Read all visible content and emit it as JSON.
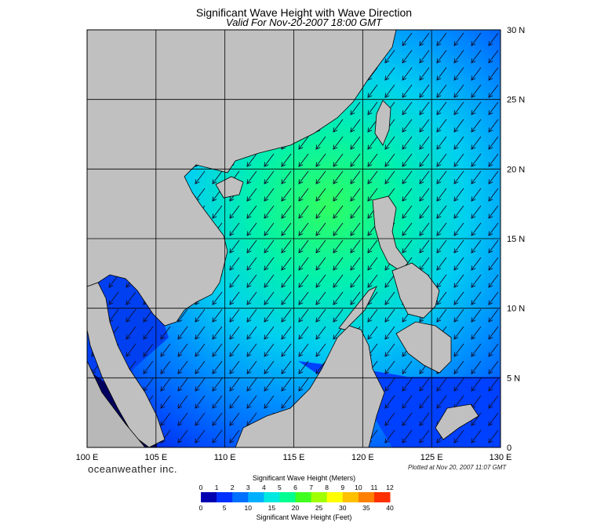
{
  "title": "Significant Wave Height with Wave Direction",
  "subtitle": "Valid For Nov-20-2007 18:00 GMT",
  "brand": "oceanweather inc.",
  "plotted": "Plotted at Nov 20, 2007 11:07 GMT",
  "map": {
    "lon_labels": [
      "100 E",
      "105 E",
      "110 E",
      "115 E",
      "120 E",
      "125 E",
      "130 E"
    ],
    "lat_labels": [
      "30 N",
      "25 N",
      "20 N",
      "15 N",
      "10 N",
      "5 N",
      "0"
    ],
    "lon_range": [
      100,
      130
    ],
    "lat_range": [
      0,
      30
    ],
    "land_color": "#c0c0c0",
    "grid_color": "#000000",
    "wave_direction": "southwest"
  },
  "legend": {
    "meters_title": "Significant Wave Height (Meters)",
    "feet_title": "Significant Wave Height (Feet)",
    "meters_ticks": [
      "0",
      "1",
      "2",
      "3",
      "4",
      "5",
      "6",
      "7",
      "8",
      "9",
      "10",
      "11",
      "12"
    ],
    "feet_ticks": [
      "0",
      "5",
      "10",
      "15",
      "20",
      "25",
      "30",
      "35",
      "40"
    ],
    "colors": [
      "#0000b0",
      "#0030ff",
      "#0070ff",
      "#00b0ff",
      "#00e8e0",
      "#00ff90",
      "#40ff20",
      "#a0ff00",
      "#ffff00",
      "#ffc000",
      "#ff8000",
      "#ff3000"
    ]
  }
}
